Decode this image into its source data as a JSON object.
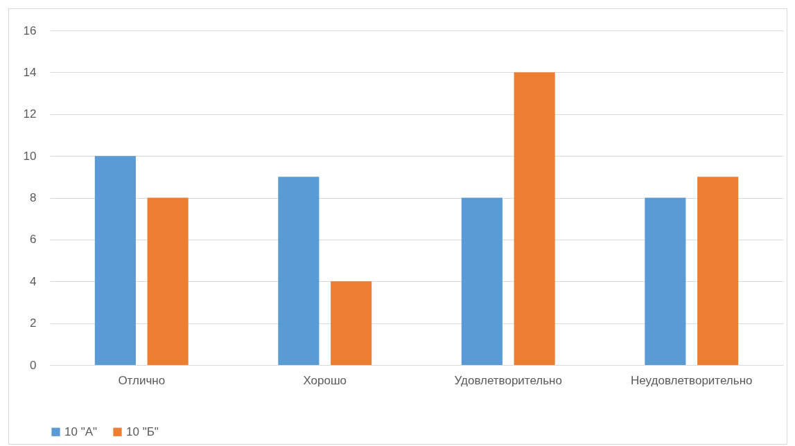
{
  "chart_data": {
    "type": "bar",
    "categories": [
      "Отлично",
      "Хорошо",
      "Удовлетворительно",
      "Неудовлетворительно"
    ],
    "series": [
      {
        "name": "10 \"А\"",
        "color": "#5b9bd5",
        "values": [
          10,
          9,
          8,
          8
        ]
      },
      {
        "name": "10 \"Б\"",
        "color": "#ed7d31",
        "values": [
          8,
          4,
          14,
          9
        ]
      }
    ],
    "ylim": [
      0,
      16
    ],
    "yticks": [
      0,
      2,
      4,
      6,
      8,
      10,
      12,
      14,
      16
    ],
    "grid": "y",
    "legend": "bottom"
  }
}
